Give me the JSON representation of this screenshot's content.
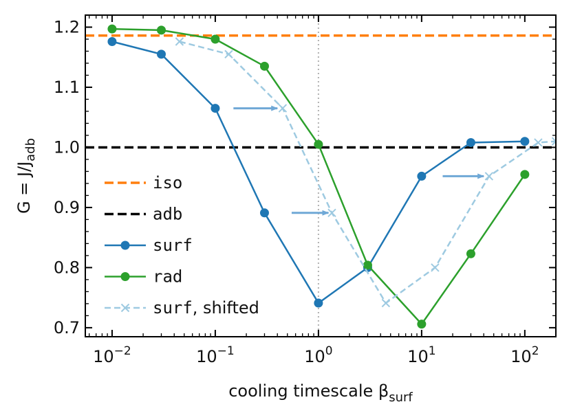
{
  "chart_data": {
    "type": "line",
    "xscale": "log",
    "xlim": [
      0.0055,
      200
    ],
    "ylim": [
      0.685,
      1.22
    ],
    "ylabel_main": "G = J/J",
    "ylabel_sub": "adb",
    "xlabel_main": "cooling timescale β",
    "xlabel_sub": "surf",
    "x_ticks": [
      {
        "value": 0.01,
        "base": "10",
        "exp": "−2"
      },
      {
        "value": 0.1,
        "base": "10",
        "exp": "−1"
      },
      {
        "value": 1,
        "base": "10",
        "exp": "0"
      },
      {
        "value": 10,
        "base": "10",
        "exp": "1"
      },
      {
        "value": 100,
        "base": "10",
        "exp": "2"
      }
    ],
    "y_ticks": [
      {
        "value": 0.7,
        "label": "0.7"
      },
      {
        "value": 0.8,
        "label": "0.8"
      },
      {
        "value": 0.9,
        "label": "0.9"
      },
      {
        "value": 1.0,
        "label": "1.0"
      },
      {
        "value": 1.1,
        "label": "1.1"
      },
      {
        "value": 1.2,
        "label": "1.2"
      }
    ],
    "reference_lines": [
      {
        "name": "iso",
        "y": 1.186,
        "color": "#ff7f0e",
        "style": "dashed"
      },
      {
        "name": "adb",
        "y": 1.0,
        "color": "#000000",
        "style": "dashed"
      }
    ],
    "vertical_line": {
      "x": 1.0,
      "color": "#b0b0b0",
      "style": "dotted"
    },
    "series": [
      {
        "name": "surf",
        "color": "#1f77b4",
        "marker": "circle",
        "style": "solid",
        "x": [
          0.01,
          0.03,
          0.1,
          0.3,
          1,
          3,
          10,
          30,
          100
        ],
        "y": [
          1.176,
          1.155,
          1.065,
          0.891,
          0.741,
          0.8,
          0.952,
          1.008,
          1.01
        ]
      },
      {
        "name": "rad",
        "color": "#2ca02c",
        "marker": "circle",
        "style": "solid",
        "x": [
          0.01,
          0.03,
          0.1,
          0.3,
          1,
          3,
          10,
          30,
          100
        ],
        "y": [
          1.197,
          1.195,
          1.18,
          1.135,
          1.005,
          0.804,
          0.706,
          0.823,
          0.955
        ]
      },
      {
        "name": "surf, shifted",
        "color": "#9ecae1",
        "marker": "x",
        "style": "dashed",
        "x": [
          0.045,
          0.135,
          0.45,
          1.35,
          4.5,
          13.5,
          45,
          135,
          200
        ],
        "y": [
          1.176,
          1.155,
          1.065,
          0.891,
          0.741,
          0.8,
          0.952,
          1.008,
          1.01
        ]
      }
    ],
    "arrows": [
      {
        "x_from": 0.15,
        "x_to": 0.4,
        "y": 1.065
      },
      {
        "x_from": 0.55,
        "x_to": 1.25,
        "y": 0.891
      },
      {
        "x_from": 16,
        "x_to": 40,
        "y": 0.952
      }
    ],
    "legend": {
      "placement": "lower-left",
      "entries": [
        {
          "label": "iso",
          "font": "mono"
        },
        {
          "label": "adb",
          "font": "mono"
        },
        {
          "label": "surf",
          "font": "mono"
        },
        {
          "label": "rad",
          "font": "mono"
        },
        {
          "label_mono": "surf",
          "label_rest": ", shifted"
        }
      ]
    }
  }
}
